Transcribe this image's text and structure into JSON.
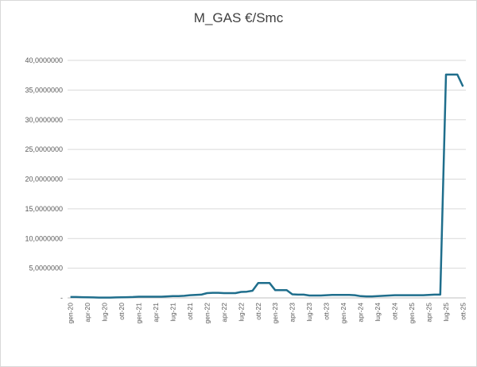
{
  "chart_data": {
    "type": "line",
    "title": "M_GAS €/Smc",
    "xlabel": "",
    "ylabel": "",
    "ylim": [
      0,
      40
    ],
    "grid": true,
    "series_color": "#1f6e8c",
    "yticks": [
      "-",
      "5,0000000",
      "10,0000000",
      "15,0000000",
      "20,0000000",
      "25,0000000",
      "30,0000000",
      "35,0000000",
      "40,0000000"
    ],
    "ytick_values": [
      0,
      5,
      10,
      15,
      20,
      25,
      30,
      35,
      40
    ],
    "categories": [
      "gen-20",
      "feb-20",
      "mar-20",
      "apr-20",
      "mag-20",
      "giu-20",
      "lug-20",
      "ago-20",
      "set-20",
      "ott-20",
      "nov-20",
      "dic-20",
      "gen-21",
      "feb-21",
      "mar-21",
      "apr-21",
      "mag-21",
      "giu-21",
      "lug-21",
      "ago-21",
      "set-21",
      "ott-21",
      "nov-21",
      "dic-21",
      "gen-22",
      "feb-22",
      "mar-22",
      "apr-22",
      "mag-22",
      "giu-22",
      "lug-22",
      "ago-22",
      "set-22",
      "ott-22",
      "nov-22",
      "dic-22",
      "gen-23",
      "feb-23",
      "mar-23",
      "apr-23",
      "mag-23",
      "giu-23",
      "lug-23",
      "ago-23",
      "set-23",
      "ott-23",
      "nov-23",
      "dic-23",
      "gen-24",
      "feb-24",
      "mar-24",
      "apr-24",
      "mag-24",
      "giu-24",
      "lug-24",
      "ago-24",
      "set-24",
      "ott-24",
      "nov-24",
      "dic-24",
      "gen-25",
      "feb-25",
      "mar-25",
      "apr-25",
      "mag-25",
      "giu-25",
      "lug-25",
      "ago-25",
      "set-25",
      "ott-25"
    ],
    "xtick_labels": [
      "gen-20",
      "apr-20",
      "lug-20",
      "ott-20",
      "gen-21",
      "apr-21",
      "lug-21",
      "ott-21",
      "gen-22",
      "apr-22",
      "lug-22",
      "ott-22",
      "gen-23",
      "apr-23",
      "lug-23",
      "ott-23",
      "gen-24",
      "apr-24",
      "lug-24",
      "ott-24",
      "gen-25",
      "apr-25",
      "lug-25",
      "ott-25"
    ],
    "values": [
      0.15,
      0.15,
      0.12,
      0.1,
      0.08,
      0.05,
      0.05,
      0.05,
      0.08,
      0.1,
      0.12,
      0.15,
      0.2,
      0.2,
      0.2,
      0.2,
      0.2,
      0.25,
      0.3,
      0.3,
      0.35,
      0.45,
      0.5,
      0.55,
      0.8,
      0.85,
      0.85,
      0.8,
      0.8,
      0.8,
      1.0,
      1.05,
      1.2,
      2.5,
      2.5,
      2.5,
      1.3,
      1.3,
      1.3,
      0.6,
      0.55,
      0.55,
      0.4,
      0.4,
      0.4,
      0.45,
      0.5,
      0.5,
      0.5,
      0.5,
      0.45,
      0.3,
      0.25,
      0.25,
      0.3,
      0.35,
      0.4,
      0.45,
      0.45,
      0.45,
      0.45,
      0.45,
      0.45,
      0.5,
      0.55,
      0.55,
      37.6,
      37.6,
      37.6,
      35.6
    ]
  }
}
